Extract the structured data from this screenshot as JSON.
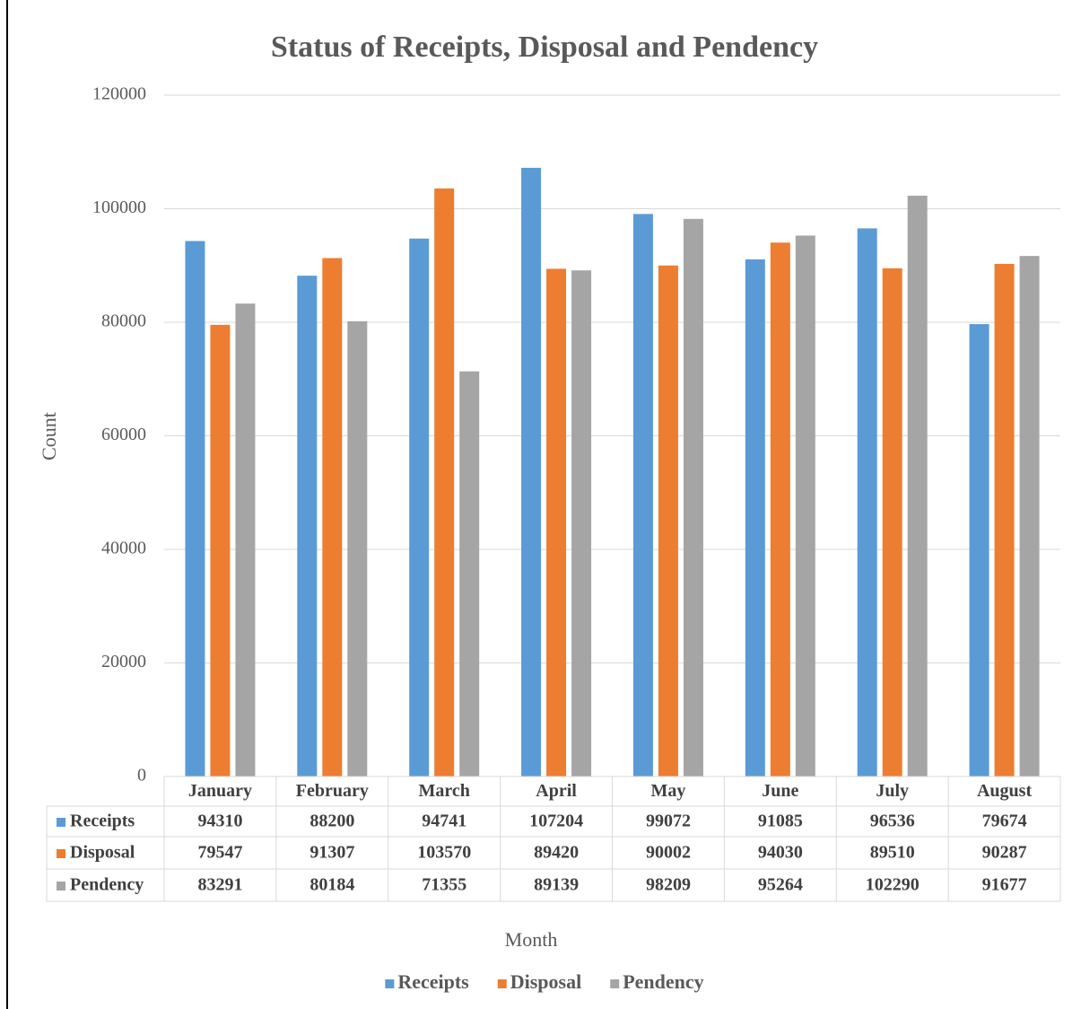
{
  "chart_data": {
    "type": "bar",
    "title": "Status of Receipts, Disposal and Pendency",
    "x_label": "Month",
    "y_label": "Count",
    "categories": [
      "January",
      "February",
      "March",
      "April",
      "May",
      "June",
      "July",
      "August"
    ],
    "series": [
      {
        "name": "Receipts",
        "color": "#5b9bd5",
        "values": [
          94310,
          88200,
          94741,
          107204,
          99072,
          91085,
          96536,
          79674
        ]
      },
      {
        "name": "Disposal",
        "color": "#ed7d31",
        "values": [
          79547,
          91307,
          103570,
          89420,
          90002,
          94030,
          89510,
          90287
        ]
      },
      {
        "name": "Pendency",
        "color": "#a5a5a5",
        "values": [
          83291,
          80184,
          71355,
          89139,
          98209,
          95264,
          102290,
          91677
        ]
      }
    ],
    "ylim": [
      0,
      120000
    ],
    "yticks": [
      0,
      20000,
      40000,
      60000,
      80000,
      100000,
      120000
    ],
    "grid": true,
    "data_table": true,
    "legend": "bottom"
  }
}
